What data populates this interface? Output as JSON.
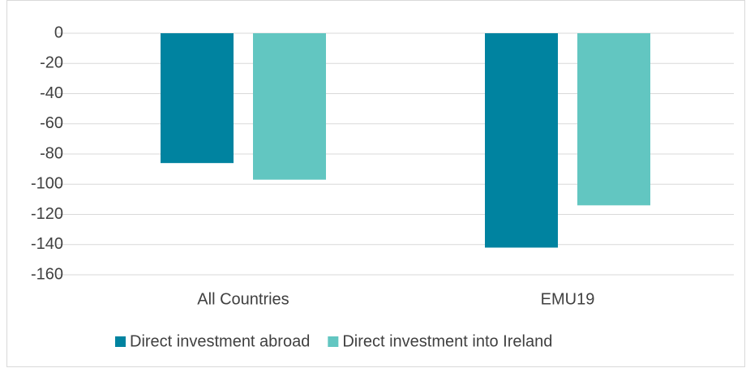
{
  "chart_data": {
    "type": "bar",
    "categories": [
      "All Countries",
      "EMU19"
    ],
    "series": [
      {
        "name": "Direct investment abroad",
        "color": "#0083a0",
        "values": [
          -86,
          -142
        ]
      },
      {
        "name": "Direct investment into Ireland",
        "color": "#62c6c1",
        "values": [
          -97,
          -114
        ]
      }
    ],
    "ylim": [
      -160,
      0
    ],
    "yticks": [
      0,
      -20,
      -40,
      -60,
      -80,
      -100,
      -120,
      -140,
      -160
    ],
    "grid": true
  }
}
